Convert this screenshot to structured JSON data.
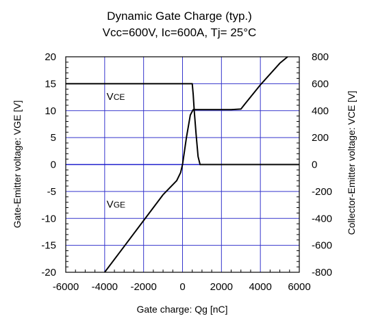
{
  "chart_data": {
    "type": "line",
    "title": "Dynamic Gate Charge (typ.)",
    "subtitle": "Vcc=600V, Ic=600A, Tj= 25°C",
    "xlabel": "Gate charge: Qg [nC]",
    "ylabel_left": "Gate-Emitter voltage:  VGE [V]",
    "ylabel_right": "Collector-Emitter voltage: VCE [V]",
    "xlim": [
      -6000,
      6000
    ],
    "ylim_left": [
      -20,
      20
    ],
    "ylim_right": [
      -800,
      800
    ],
    "x_ticks": [
      "-6000",
      "-4000",
      "-2000",
      "0",
      "2000",
      "4000",
      "6000"
    ],
    "y_left_ticks": [
      "20",
      "15",
      "10",
      "5",
      "0",
      "-5",
      "-10",
      "-15",
      "-20"
    ],
    "y_right_ticks": [
      "800",
      "600",
      "400",
      "200",
      "0",
      "-200",
      "-400",
      "-600",
      "-800"
    ],
    "grid": true,
    "grid_color": "#3333cc",
    "line_color": "#000000",
    "zero_line_color": "#1a1acc",
    "series": [
      {
        "name": "VGE",
        "axis": "left",
        "x": [
          -4000,
          -3000,
          -2000,
          -1000,
          -300,
          -100,
          0,
          200,
          400,
          550,
          1500,
          2500,
          3000,
          3200,
          4000,
          5000,
          5400
        ],
        "y": [
          -20,
          -15.2,
          -10.4,
          -5.6,
          -3,
          -1.5,
          0,
          5,
          9.2,
          10.2,
          10.2,
          10.2,
          10.3,
          11.2,
          14.8,
          18.8,
          20.3
        ]
      },
      {
        "name": "VCE",
        "axis": "right",
        "x": [
          -6000,
          500,
          550,
          600,
          700,
          800,
          900,
          6000
        ],
        "y": [
          600,
          600,
          520,
          400,
          220,
          60,
          0,
          0
        ]
      }
    ],
    "annotations": [
      {
        "label_main": "V",
        "label_sub": "CE",
        "x": -3900,
        "y_left": 12
      },
      {
        "label_main": "V",
        "label_sub": "GE",
        "x": -3900,
        "y_left": -8
      }
    ]
  }
}
